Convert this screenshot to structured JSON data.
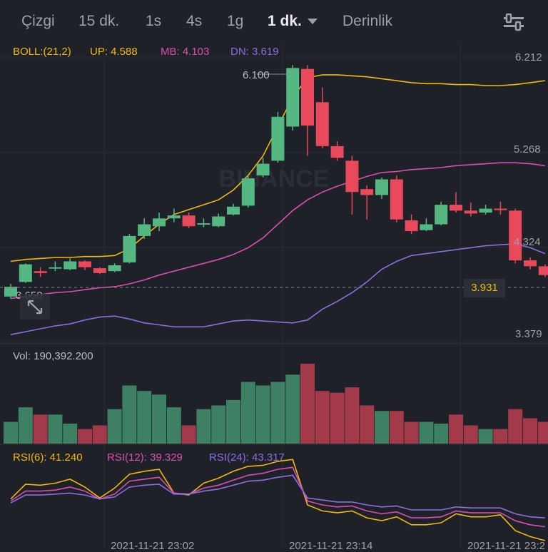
{
  "toolbar": {
    "tabs": [
      {
        "label": "Çizgi"
      },
      {
        "label": "15 dk."
      },
      {
        "label": "1s"
      },
      {
        "label": "4s"
      },
      {
        "label": "1g"
      },
      {
        "label": "1 dk."
      },
      {
        "label": "Derinlik"
      }
    ],
    "active_tab": "1 dk.",
    "settings_icon": "sliders-icon"
  },
  "boll": {
    "label": "BOLL:(21,2)",
    "up": "UP: 4.588",
    "mb": "MB: 4.103",
    "dn": "DN: 3.619"
  },
  "price_axis": [
    "6.212",
    "5.268",
    "4.324",
    "3.379"
  ],
  "high_marker": "6.100",
  "low_marker": "3.650",
  "current_price": "3.931",
  "watermark": "BINANCE",
  "volume": {
    "label": "Vol: 190,392.200"
  },
  "rsi": {
    "r6": "RSI(6): 41.240",
    "r12": "RSI(12): 39.329",
    "r24": "RSI(24): 43.317"
  },
  "time_axis": [
    "2021-11-21 23:02",
    "2021-11-21 23:14",
    "2021-11-21 23:2"
  ],
  "colors": {
    "up": "#55b883",
    "down": "#e8495b",
    "boll_up": "#f0b90b",
    "boll_mb": "#d94fb0",
    "boll_dn": "#8c6ee0",
    "background": "#1f2129"
  },
  "chart_data": {
    "type": "candlestick",
    "ylim": [
      3.379,
      6.212
    ],
    "candles": [
      {
        "o": 3.76,
        "c": 3.86,
        "h": 3.89,
        "l": 3.74
      },
      {
        "o": 3.91,
        "c": 4.09,
        "h": 4.1,
        "l": 3.9
      },
      {
        "o": 4.02,
        "c": 4.0,
        "h": 4.06,
        "l": 3.96
      },
      {
        "o": 4.05,
        "c": 4.06,
        "h": 4.12,
        "l": 4.02
      },
      {
        "o": 4.04,
        "c": 4.12,
        "h": 4.15,
        "l": 4.03
      },
      {
        "o": 4.12,
        "c": 4.06,
        "h": 4.13,
        "l": 4.03
      },
      {
        "o": 4.05,
        "c": 4.0,
        "h": 4.06,
        "l": 3.99
      },
      {
        "o": 4.02,
        "c": 4.08,
        "h": 4.1,
        "l": 4.01
      },
      {
        "o": 4.11,
        "c": 4.38,
        "h": 4.4,
        "l": 4.1
      },
      {
        "o": 4.38,
        "c": 4.5,
        "h": 4.56,
        "l": 4.35
      },
      {
        "o": 4.48,
        "c": 4.56,
        "h": 4.62,
        "l": 4.43
      },
      {
        "o": 4.56,
        "c": 4.59,
        "h": 4.66,
        "l": 4.52
      },
      {
        "o": 4.59,
        "c": 4.48,
        "h": 4.62,
        "l": 4.46
      },
      {
        "o": 4.5,
        "c": 4.51,
        "h": 4.56,
        "l": 4.47
      },
      {
        "o": 4.48,
        "c": 4.58,
        "h": 4.61,
        "l": 4.47
      },
      {
        "o": 4.6,
        "c": 4.68,
        "h": 4.71,
        "l": 4.59
      },
      {
        "o": 4.69,
        "c": 4.97,
        "h": 5.0,
        "l": 4.67
      },
      {
        "o": 5.0,
        "c": 5.12,
        "h": 5.18,
        "l": 4.98
      },
      {
        "o": 5.15,
        "c": 5.6,
        "h": 5.65,
        "l": 5.13
      },
      {
        "o": 5.5,
        "c": 6.1,
        "h": 6.13,
        "l": 5.46
      },
      {
        "o": 6.09,
        "c": 5.51,
        "h": 6.13,
        "l": 5.2
      },
      {
        "o": 5.75,
        "c": 5.3,
        "h": 5.9,
        "l": 5.28
      },
      {
        "o": 5.3,
        "c": 5.18,
        "h": 5.35,
        "l": 5.15
      },
      {
        "o": 5.15,
        "c": 4.83,
        "h": 5.2,
        "l": 4.6
      },
      {
        "o": 4.86,
        "c": 4.8,
        "h": 4.9,
        "l": 4.55
      },
      {
        "o": 4.8,
        "c": 4.96,
        "h": 4.98,
        "l": 4.76
      },
      {
        "o": 4.96,
        "c": 4.55,
        "h": 5.0,
        "l": 4.52
      },
      {
        "o": 4.54,
        "c": 4.43,
        "h": 4.6,
        "l": 4.4
      },
      {
        "o": 4.44,
        "c": 4.5,
        "h": 4.56,
        "l": 4.43
      },
      {
        "o": 4.5,
        "c": 4.7,
        "h": 4.73,
        "l": 4.49
      },
      {
        "o": 4.7,
        "c": 4.64,
        "h": 4.83,
        "l": 4.62
      },
      {
        "o": 4.64,
        "c": 4.61,
        "h": 4.72,
        "l": 4.58
      },
      {
        "o": 4.62,
        "c": 4.66,
        "h": 4.7,
        "l": 4.6
      },
      {
        "o": 4.66,
        "c": 4.65,
        "h": 4.73,
        "l": 4.6
      },
      {
        "o": 4.64,
        "c": 4.13,
        "h": 4.66,
        "l": 4.1
      },
      {
        "o": 4.13,
        "c": 4.07,
        "h": 4.16,
        "l": 4.04
      },
      {
        "o": 4.07,
        "c": 3.98,
        "h": 4.09,
        "l": 3.96
      }
    ],
    "boll_up": [
      4.12,
      4.14,
      4.15,
      4.16,
      4.16,
      4.17,
      4.17,
      4.18,
      4.25,
      4.38,
      4.5,
      4.6,
      4.65,
      4.7,
      4.75,
      4.85,
      5.0,
      5.2,
      5.5,
      5.8,
      6.0,
      6.03,
      6.03,
      6.02,
      6.01,
      5.99,
      5.97,
      5.95,
      5.94,
      5.94,
      5.93,
      5.93,
      5.92,
      5.92,
      5.93,
      5.95,
      5.97
    ],
    "boll_mb": [
      3.74,
      3.76,
      3.78,
      3.8,
      3.81,
      3.83,
      3.85,
      3.86,
      3.89,
      3.93,
      3.98,
      4.02,
      4.06,
      4.1,
      4.14,
      4.19,
      4.26,
      4.36,
      4.5,
      4.64,
      4.75,
      4.83,
      4.89,
      4.94,
      4.99,
      5.03,
      5.04,
      5.06,
      5.07,
      5.08,
      5.1,
      5.11,
      5.12,
      5.13,
      5.13,
      5.12,
      5.1
    ],
    "boll_dn": [
      3.37,
      3.4,
      3.43,
      3.46,
      3.48,
      3.52,
      3.55,
      3.56,
      3.53,
      3.49,
      3.47,
      3.45,
      3.45,
      3.45,
      3.48,
      3.51,
      3.52,
      3.51,
      3.5,
      3.49,
      3.52,
      3.63,
      3.71,
      3.8,
      3.91,
      4.04,
      4.12,
      4.18,
      4.2,
      4.22,
      4.24,
      4.26,
      4.28,
      4.29,
      4.3,
      4.26,
      4.2
    ],
    "volume": [
      12,
      20,
      16,
      16,
      11,
      8,
      10,
      19,
      32,
      29,
      27,
      20,
      10,
      19,
      21,
      24,
      34,
      32,
      34,
      38,
      44,
      29,
      28,
      31,
      21,
      18,
      18,
      12,
      12,
      11,
      16,
      10,
      8,
      8,
      19,
      14,
      12
    ],
    "rsi6": [
      52,
      67,
      66,
      68,
      72,
      64,
      53,
      63,
      77,
      80,
      82,
      58,
      56,
      68,
      73,
      80,
      85,
      86,
      90,
      92,
      46,
      40,
      38,
      40,
      33,
      30,
      34,
      26,
      26,
      28,
      37,
      34,
      34,
      36,
      20,
      14,
      10
    ],
    "rsi12": [
      50,
      60,
      60,
      61,
      64,
      60,
      52,
      57,
      70,
      72,
      74,
      58,
      57,
      63,
      66,
      71,
      76,
      78,
      82,
      84,
      50,
      46,
      44,
      45,
      40,
      37,
      39,
      33,
      33,
      34,
      40,
      38,
      38,
      38,
      30,
      26,
      24
    ],
    "rsi24": [
      48,
      56,
      56,
      57,
      58,
      56,
      52,
      54,
      64,
      66,
      67,
      57,
      57,
      60,
      62,
      66,
      70,
      71,
      74,
      76,
      53,
      51,
      49,
      49,
      46,
      44,
      45,
      41,
      41,
      41,
      44,
      43,
      43,
      43,
      37,
      34,
      33
    ]
  }
}
